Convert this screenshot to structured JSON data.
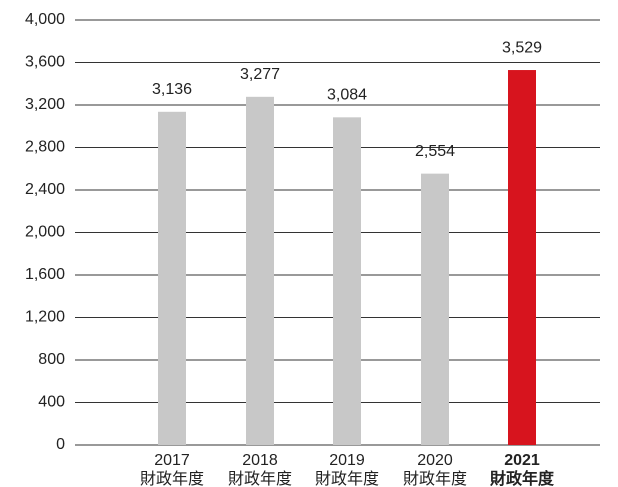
{
  "chart_data": {
    "type": "bar",
    "categories": [
      [
        "2017",
        "財政年度"
      ],
      [
        "2018",
        "財政年度"
      ],
      [
        "2019",
        "財政年度"
      ],
      [
        "2020",
        "財政年度"
      ],
      [
        "2021",
        "財政年度"
      ]
    ],
    "values": [
      3136,
      3277,
      3084,
      2554,
      3529
    ],
    "value_labels": [
      "3,136",
      "3,277",
      "3,084",
      "2,554",
      "3,529"
    ],
    "colors": [
      "#c8c8c8",
      "#c8c8c8",
      "#c8c8c8",
      "#c8c8c8",
      "#d7141e"
    ],
    "bold_categories": [
      false,
      false,
      false,
      false,
      true
    ],
    "ylim": [
      0,
      4000
    ],
    "yticks": [
      0,
      400,
      800,
      {
        "value": 1200,
        "label": "1,200"
      },
      {
        "value": 1600,
        "label": "1,600"
      },
      {
        "value": 2000,
        "label": "2,000"
      },
      {
        "value": 2400,
        "label": "2,400"
      },
      {
        "value": 2800,
        "label": "2,800"
      },
      {
        "value": 3200,
        "label": "3,200"
      },
      {
        "value": 3600,
        "label": "3,600"
      },
      {
        "value": 4000,
        "label": "4,000"
      }
    ],
    "grid": true
  }
}
